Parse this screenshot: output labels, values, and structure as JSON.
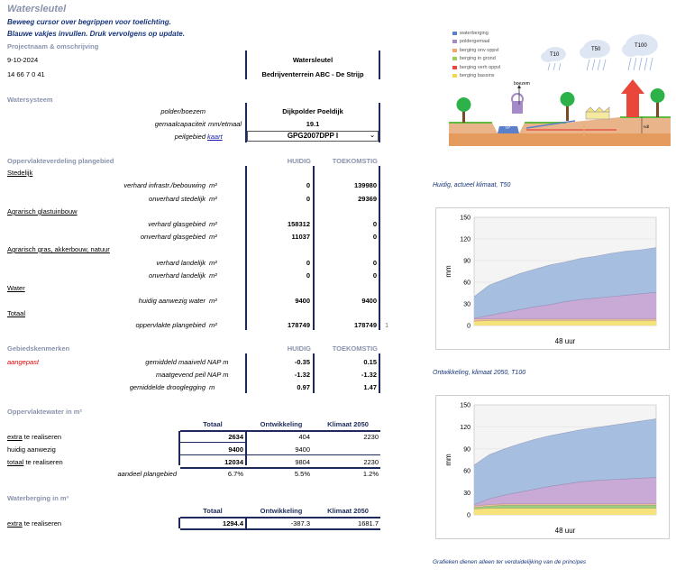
{
  "header": {
    "title": "Watersleutel",
    "hint1": "Beweeg cursor over begrippen voor toelichting.",
    "hint2": "Blauwe vakjes invullen. Druk vervolgens op update.",
    "section_project": "Projectnaam & omschrijving",
    "date": "9-10-2024",
    "code": "14 66 7 0 41",
    "project_name": "Watersleutel",
    "project_desc": "Bedrijventerrein ABC - De Strijp"
  },
  "watersysteem": {
    "section": "Watersysteem",
    "polder_label": "polder/boezem",
    "polder_value": "Dijkpolder Poeldijk",
    "gemaal_label": "gemaalcapaciteit",
    "gemaal_unit": "mm/etmaal",
    "gemaal_value": "19.1",
    "peil_label": "peilgebied",
    "peil_link": "kaart",
    "peil_value": "GPG2007DPP I"
  },
  "oppervlakte": {
    "section": "Oppervlakteverdeling plangebied",
    "col_huidig": "HUIDIG",
    "col_toekomstig": "TOEKOMSTIG",
    "groups": [
      {
        "name": "Stedelijk",
        "rows": [
          {
            "label": "verhard infrastr./bebouwing",
            "unit": "m²",
            "huidig": "0",
            "toekomstig": "139980"
          },
          {
            "label": "onverhard stedelijk",
            "unit": "m²",
            "huidig": "0",
            "toekomstig": "29369"
          }
        ]
      },
      {
        "name": "Agrarisch glastuinbouw",
        "rows": [
          {
            "label": "verhard glasgebied",
            "unit": "m²",
            "huidig": "158312",
            "toekomstig": "0"
          },
          {
            "label": "onverhard glasgebied",
            "unit": "m²",
            "huidig": "11037",
            "toekomstig": "0"
          }
        ]
      },
      {
        "name": "Agrarisch gras, akkerbouw, natuur",
        "rows": [
          {
            "label": "verhard landelijk",
            "unit": "m²",
            "huidig": "0",
            "toekomstig": "0"
          },
          {
            "label": "onverhard landelijk",
            "unit": "m²",
            "huidig": "0",
            "toekomstig": "0"
          }
        ]
      },
      {
        "name": "Water",
        "rows": [
          {
            "label": "huidig aanwezig water",
            "unit": "m²",
            "huidig": "9400",
            "toekomstig": "9400"
          }
        ]
      },
      {
        "name": "Totaal",
        "rows": [
          {
            "label": "oppervlakte plangebied",
            "unit": "m²",
            "huidig": "178749",
            "toekomstig": "178749"
          }
        ]
      }
    ],
    "note": "1"
  },
  "gebied": {
    "section": "Gebiedskenmerken",
    "col_huidig": "HUIDIG",
    "col_toekomstig": "TOEKOMSTIG",
    "status": "aangepast",
    "rows": [
      {
        "label": "gemiddeld maaiveld",
        "unit": "NAP m",
        "huidig": "-0.35",
        "toekomstig": "0.15"
      },
      {
        "label": "maatgevend peil",
        "unit": "NAP m",
        "huidig": "-1.32",
        "toekomstig": "-1.32"
      },
      {
        "label": "gemiddelde drooglegging",
        "unit": "m",
        "huidig": "0.97",
        "toekomstig": "1.47"
      }
    ]
  },
  "oppervlaktewater": {
    "section": "Oppervlaktewater in m²",
    "cols": [
      "Totaal",
      "Ontwikkeling",
      "Klimaat 2050"
    ],
    "rows": [
      {
        "pre": "extra",
        "label": " te realiseren",
        "totaal": "2634",
        "ontw": "404",
        "klim": "2230"
      },
      {
        "pre": "",
        "label": "huidig aanwezig",
        "totaal": "9400",
        "ontw": "9400",
        "klim": ""
      },
      {
        "pre": "totaal",
        "label": " te realiseren",
        "totaal": "12034",
        "ontw": "9804",
        "klim": "2230"
      }
    ],
    "aandeel_label": "aandeel plangebied",
    "aandeel": [
      "6.7%",
      "5.5%",
      "1.2%"
    ]
  },
  "waterberging": {
    "section": "Waterberging in m³",
    "cols": [
      "Totaal",
      "Ontwikkeling",
      "Klimaat 2050"
    ],
    "row": {
      "pre": "extra",
      "label": " te realiseren",
      "totaal": "1294.4",
      "ontw": "-387.3",
      "klim": "1681.7"
    }
  },
  "legend": {
    "items": [
      {
        "label": "waterberging",
        "color": "#5b7fc9"
      },
      {
        "label": "poldergemaal",
        "color": "#a58ac9"
      },
      {
        "label": "berging onv oppvl",
        "color": "#f2a56b"
      },
      {
        "label": "berging in grond",
        "color": "#9acd5a"
      },
      {
        "label": "berging verh oppvl",
        "color": "#e8473a"
      },
      {
        "label": "berging bassins",
        "color": "#f5d64a"
      }
    ],
    "clouds": [
      "T10",
      "T50",
      "T100"
    ],
    "labels": {
      "boezem": "boezem",
      "tp": "TP",
      "ndl": "ndl"
    }
  },
  "chart_caption1": "Huidig, actueel klimaat, T50",
  "chart_caption2": "Ontwikkeling, klimaat 2050, T100",
  "footer_note": "Grafieken dienen alleen ter verduidelijking van de principes",
  "chart_data": [
    {
      "type": "area",
      "ylabel": "mm",
      "xlabel": "48 uur",
      "ylim": [
        0,
        150
      ],
      "yticks": [
        0,
        30,
        60,
        90,
        120,
        150
      ],
      "x": [
        0,
        1,
        2,
        3,
        4,
        5,
        6,
        7,
        8,
        9,
        10,
        11,
        12
      ],
      "series": [
        {
          "color": "#f5e27a",
          "values": [
            6,
            7,
            7,
            7,
            7,
            7,
            7,
            7,
            7,
            7,
            7,
            7,
            7
          ]
        },
        {
          "color": "#f2c09a",
          "values": [
            9,
            9,
            9,
            9,
            9,
            9,
            9,
            9,
            9,
            9,
            9,
            9,
            9
          ]
        },
        {
          "color": "#c9a9d6",
          "values": [
            10,
            14,
            18,
            22,
            26,
            29,
            33,
            36,
            38,
            40,
            42,
            44,
            46
          ]
        },
        {
          "color": "#a6bee0",
          "values": [
            40,
            56,
            64,
            72,
            78,
            84,
            88,
            93,
            96,
            100,
            103,
            105,
            108
          ]
        }
      ]
    },
    {
      "type": "area",
      "ylabel": "mm",
      "xlabel": "48 uur",
      "ylim": [
        0,
        150
      ],
      "yticks": [
        0,
        30,
        60,
        90,
        120,
        150
      ],
      "x": [
        0,
        1,
        2,
        3,
        4,
        5,
        6,
        7,
        8,
        9,
        10,
        11,
        12
      ],
      "series": [
        {
          "color": "#f5e27a",
          "values": [
            8,
            9,
            9,
            9,
            9,
            9,
            9,
            9,
            9,
            9,
            9,
            9,
            9
          ]
        },
        {
          "color": "#9dd07a",
          "values": [
            10,
            12,
            13,
            13,
            13,
            13,
            13,
            13,
            13,
            13,
            13,
            13,
            13
          ]
        },
        {
          "color": "#f2c09a",
          "values": [
            12,
            14,
            15,
            15,
            15,
            15,
            15,
            15,
            15,
            15,
            15,
            15,
            15
          ]
        },
        {
          "color": "#c9a9d6",
          "values": [
            14,
            22,
            27,
            31,
            35,
            39,
            42,
            45,
            47,
            48,
            49,
            50,
            51
          ]
        },
        {
          "color": "#a6bee0",
          "values": [
            68,
            82,
            90,
            97,
            103,
            108,
            112,
            116,
            119,
            122,
            125,
            128,
            131
          ]
        }
      ]
    }
  ]
}
